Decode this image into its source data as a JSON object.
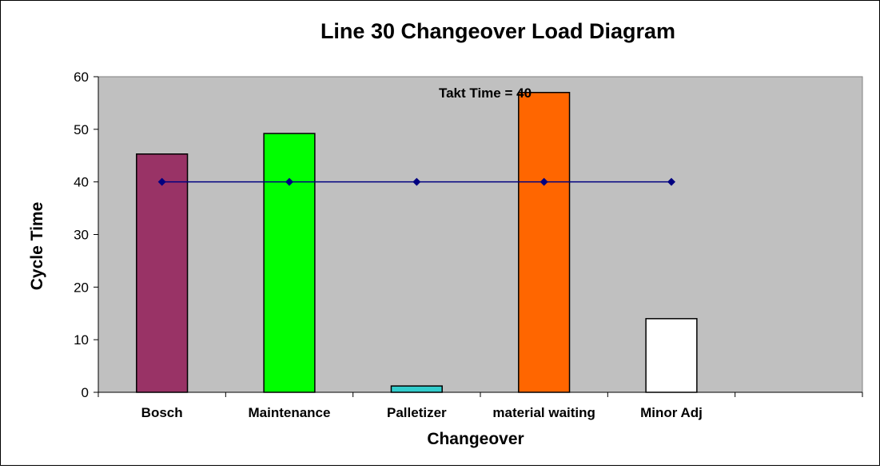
{
  "chart_data": {
    "type": "bar",
    "title": "Line 30 Changeover Load Diagram",
    "xlabel": "Changeover",
    "ylabel": "Cycle Time",
    "categories": [
      "Bosch",
      "Maintenance",
      "Palletizer",
      "material waiting",
      "Minor Adj"
    ],
    "series": [
      {
        "values": [
          45.3,
          49.2,
          1.2,
          57.0,
          14.0
        ],
        "colors": [
          "#993366",
          "#00ff00",
          "#33cccc",
          "#ff6600",
          "#ffffff"
        ]
      },
      {
        "type": "line",
        "values": [
          40,
          40,
          40,
          40,
          40
        ],
        "color": "#000080"
      }
    ],
    "ylim": [
      0,
      60
    ],
    "yticks": [
      0,
      10,
      20,
      30,
      40,
      50,
      60
    ],
    "annotation": "Takt Time = 40",
    "plot_background": "#c0c0c0",
    "grid": false,
    "legend": "none"
  }
}
